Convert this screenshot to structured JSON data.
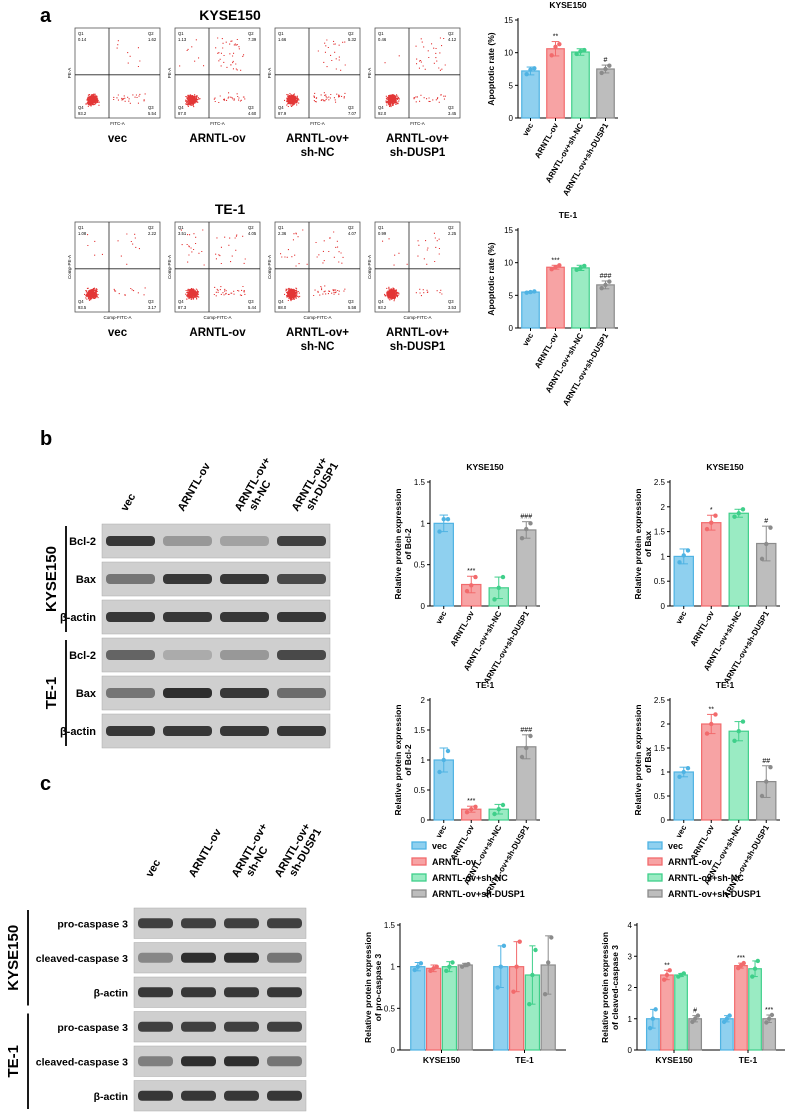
{
  "colors": {
    "vec": "#4fb3e3",
    "arntl": "#f26a6c",
    "shnc": "#3fcf8a",
    "shdusp1": "#8b8b8b",
    "vec_fill": "#8fd0ef",
    "arntl_fill": "#f7a3a4",
    "shnc_fill": "#9aebc3",
    "shdusp1_fill": "#bdbdbd",
    "blot_bg": "#cfcfcf",
    "band": "#1c1c1c"
  },
  "panel_letters": {
    "a": "a",
    "b": "b",
    "c": "c"
  },
  "flow": {
    "groups": [
      "vec",
      "ARNTL-ov",
      "ARNTL-ov+\nsh-NC",
      "ARNTL-ov+\nsh-DUSP1"
    ],
    "rows": [
      {
        "title": "KYSE150",
        "x_axis_label": "FITC-A",
        "y_axis_label": "PE-A",
        "quadrants": [
          {
            "q1": "0.14",
            "q2": "1.62",
            "q3": "5.54",
            "q4": "93.2"
          },
          {
            "q1": "1.13",
            "q2": "7.39",
            "q3": "4.60",
            "q4": "87.0"
          },
          {
            "q1": "1.66",
            "q2": "5.32",
            "q3": "7.07",
            "q4": "87.9"
          },
          {
            "q1": "0.46",
            "q2": "4.12",
            "q3": "3.45",
            "q4": "92.0"
          }
        ]
      },
      {
        "title": "TE-1",
        "x_axis_label": "Comp-FITC-A",
        "y_axis_label": "Comp-PE-A",
        "quadrants": [
          {
            "q1": "1.08",
            "q2": "2.22",
            "q3": "3.17",
            "q4": "93.5"
          },
          {
            "q1": "3.51",
            "q2": "4.05",
            "q3": "5.44",
            "q4": "87.3"
          },
          {
            "q1": "2.36",
            "q2": "4.07",
            "q3": "5.58",
            "q4": "88.0"
          },
          {
            "q1": "0.99",
            "q2": "2.25",
            "q3": "3.53",
            "q4": "93.2"
          }
        ]
      }
    ],
    "quadrant_names": {
      "q1": "Q1",
      "q2": "Q2",
      "q3": "Q3",
      "q4": "Q4"
    }
  },
  "blot_b": {
    "lanes": [
      "vec",
      "ARNTL-ov",
      "ARNTL-ov+\nsh-NC",
      "ARNTL-ov+\nsh-DUSP1"
    ],
    "cell_lines": [
      "KYSE150",
      "TE-1"
    ],
    "rows": [
      {
        "label": "Bcl-2",
        "intensity": [
          0.85,
          0.3,
          0.25,
          0.8
        ]
      },
      {
        "label": "Bax",
        "intensity": [
          0.5,
          0.85,
          0.85,
          0.75
        ]
      },
      {
        "label": "β-actin",
        "intensity": [
          0.85,
          0.85,
          0.85,
          0.85
        ]
      },
      {
        "label": "Bcl-2",
        "intensity": [
          0.6,
          0.2,
          0.3,
          0.75
        ]
      },
      {
        "label": "Bax",
        "intensity": [
          0.5,
          0.9,
          0.85,
          0.55
        ]
      },
      {
        "label": "β-actin",
        "intensity": [
          0.85,
          0.85,
          0.85,
          0.85
        ]
      }
    ]
  },
  "blot_c": {
    "lanes": [
      "vec",
      "ARNTL-ov",
      "ARNTL-ov+\nsh-NC",
      "ARNTL-ov+\nsh-DUSP1"
    ],
    "cell_lines": [
      "KYSE150",
      "TE-1"
    ],
    "rows": [
      {
        "label": "pro-caspase 3",
        "intensity": [
          0.8,
          0.8,
          0.8,
          0.8
        ]
      },
      {
        "label": "cleaved-caspase 3",
        "intensity": [
          0.4,
          0.9,
          0.9,
          0.5
        ]
      },
      {
        "label": "β-actin",
        "intensity": [
          0.85,
          0.85,
          0.85,
          0.85
        ]
      },
      {
        "label": "pro-caspase 3",
        "intensity": [
          0.8,
          0.8,
          0.8,
          0.8
        ]
      },
      {
        "label": "cleaved-caspase 3",
        "intensity": [
          0.45,
          0.9,
          0.9,
          0.5
        ]
      },
      {
        "label": "β-actin",
        "intensity": [
          0.85,
          0.85,
          0.85,
          0.85
        ]
      }
    ]
  },
  "chart_data": [
    {
      "id": "a-kyse150",
      "type": "bar",
      "title": "KYSE150",
      "ylabel": "Apoptotic rate (%)",
      "xlabel": "",
      "categories": [
        "vec",
        "ARNTL-ov",
        "ARNTL-ov+sh-NC",
        "ARNTL-ov+sh-DUSP1"
      ],
      "values": [
        7.2,
        10.6,
        10.1,
        7.5
      ],
      "errors": [
        0.6,
        1.1,
        0.5,
        0.6
      ],
      "points": [
        [
          6.7,
          7.4,
          7.6
        ],
        [
          9.6,
          10.9,
          11.3
        ],
        [
          9.8,
          10.2,
          10.4
        ],
        [
          6.9,
          7.5,
          8.0
        ]
      ],
      "significance": [
        "",
        "**",
        "",
        "#"
      ],
      "ylim": [
        0,
        15
      ],
      "yticks": [
        0,
        5,
        10,
        15
      ]
    },
    {
      "id": "a-te1",
      "type": "bar",
      "title": "TE-1",
      "ylabel": "Apoptotic rate (%)",
      "xlabel": "",
      "categories": [
        "vec",
        "ARNTL-ov",
        "ARNTL-ov+sh-NC",
        "ARNTL-ov+sh-DUSP1"
      ],
      "values": [
        5.5,
        9.3,
        9.2,
        6.6
      ],
      "errors": [
        0.1,
        0.3,
        0.4,
        0.6
      ],
      "points": [
        [
          5.4,
          5.5,
          5.6
        ],
        [
          9.0,
          9.3,
          9.6
        ],
        [
          8.9,
          9.2,
          9.5
        ],
        [
          6.1,
          6.6,
          7.1
        ]
      ],
      "significance": [
        "",
        "***",
        "",
        "###"
      ],
      "ylim": [
        0,
        15
      ],
      "yticks": [
        0,
        5,
        10,
        15
      ]
    },
    {
      "id": "b-kyse150-bcl2",
      "type": "bar",
      "title": "KYSE150",
      "ylabel": "Relative protein expression\nof Bcl-2",
      "xlabel": "",
      "categories": [
        "vec",
        "ARNTL-ov",
        "ARNTL-ov+sh-NC",
        "ARNTL-ov+sh-DUSP1"
      ],
      "values": [
        1.0,
        0.26,
        0.22,
        0.92
      ],
      "errors": [
        0.1,
        0.1,
        0.13,
        0.1
      ],
      "points": [
        [
          0.9,
          1.05,
          1.05
        ],
        [
          0.18,
          0.25,
          0.35
        ],
        [
          0.08,
          0.22,
          0.35
        ],
        [
          0.82,
          0.93,
          1.0
        ]
      ],
      "significance": [
        "",
        "***",
        "",
        "###"
      ],
      "ylim": [
        0,
        1.5
      ],
      "yticks": [
        0,
        0.5,
        1.0,
        1.5
      ]
    },
    {
      "id": "b-kyse150-bax",
      "type": "bar",
      "title": "KYSE150",
      "ylabel": "Relative protein expression\nof Bax",
      "xlabel": "",
      "categories": [
        "vec",
        "ARNTL-ov",
        "ARNTL-ov+sh-NC",
        "ARNTL-ov+sh-DUSP1"
      ],
      "values": [
        1.0,
        1.68,
        1.87,
        1.26
      ],
      "errors": [
        0.15,
        0.15,
        0.08,
        0.35
      ],
      "points": [
        [
          0.88,
          1.02,
          1.12
        ],
        [
          1.55,
          1.68,
          1.82
        ],
        [
          1.8,
          1.87,
          1.95
        ],
        [
          0.95,
          1.25,
          1.58
        ]
      ],
      "significance": [
        "",
        "*",
        "",
        "#"
      ],
      "ylim": [
        0,
        2.5
      ],
      "yticks": [
        0,
        0.5,
        1.0,
        1.5,
        2.0,
        2.5
      ]
    },
    {
      "id": "b-te1-bcl2",
      "type": "bar",
      "title": "TE-1",
      "ylabel": "Relative protein expression\nof Bcl-2",
      "xlabel": "",
      "categories": [
        "vec",
        "ARNTL-ov",
        "ARNTL-ov+sh-NC",
        "ARNTL-ov+sh-DUSP1"
      ],
      "values": [
        1.0,
        0.18,
        0.18,
        1.22
      ],
      "errors": [
        0.2,
        0.05,
        0.08,
        0.2
      ],
      "points": [
        [
          0.8,
          1.0,
          1.15
        ],
        [
          0.13,
          0.18,
          0.22
        ],
        [
          0.1,
          0.18,
          0.25
        ],
        [
          1.05,
          1.2,
          1.4
        ]
      ],
      "significance": [
        "",
        "***",
        "",
        "###"
      ],
      "ylim": [
        0,
        2.0
      ],
      "yticks": [
        0,
        0.5,
        1.0,
        1.5,
        2.0
      ]
    },
    {
      "id": "b-te1-bax",
      "type": "bar",
      "title": "TE-1",
      "ylabel": "Relative protein expression\nof Bax",
      "xlabel": "",
      "categories": [
        "vec",
        "ARNTL-ov",
        "ARNTL-ov+sh-NC",
        "ARNTL-ov+sh-DUSP1"
      ],
      "values": [
        1.0,
        2.0,
        1.85,
        0.8
      ],
      "errors": [
        0.1,
        0.2,
        0.2,
        0.33
      ],
      "points": [
        [
          0.9,
          1.0,
          1.08
        ],
        [
          1.8,
          2.0,
          2.2
        ],
        [
          1.65,
          1.85,
          2.05
        ],
        [
          0.5,
          0.8,
          1.1
        ]
      ],
      "significance": [
        "",
        "**",
        "",
        "##"
      ],
      "ylim": [
        0,
        2.5
      ],
      "yticks": [
        0,
        0.5,
        1.0,
        1.5,
        2.0,
        2.5
      ]
    },
    {
      "id": "c-pro",
      "type": "bar",
      "title": "",
      "ylabel": "Relative protein expression\nof pro-caspase 3",
      "xlabel": "",
      "categories": [
        "KYSE150",
        "TE-1"
      ],
      "series": [
        {
          "name": "vec",
          "values": [
            1.0,
            1.0
          ],
          "errors": [
            0.05,
            0.25
          ],
          "points": [
            [
              0.96,
              1.0,
              1.04
            ],
            [
              0.75,
              1.0,
              1.25
            ]
          ]
        },
        {
          "name": "ARNTL-ov",
          "values": [
            0.98,
            1.0
          ],
          "errors": [
            0.04,
            0.3
          ],
          "points": [
            [
              0.95,
              0.98,
              1.0
            ],
            [
              0.7,
              1.0,
              1.3
            ]
          ]
        },
        {
          "name": "ARNTL-ov+sh-NC",
          "values": [
            1.0,
            0.9
          ],
          "errors": [
            0.06,
            0.35
          ],
          "points": [
            [
              0.95,
              1.0,
              1.05
            ],
            [
              0.55,
              0.9,
              1.2
            ]
          ]
        },
        {
          "name": "ARNTL-ov+sh-DUSP1",
          "values": [
            1.02,
            1.02
          ],
          "errors": [
            0.02,
            0.35
          ],
          "points": [
            [
              1.0,
              1.02,
              1.03
            ],
            [
              0.67,
              1.05,
              1.35
            ]
          ]
        }
      ],
      "significance": [
        [
          "",
          "",
          "",
          ""
        ],
        [
          "",
          "",
          "",
          ""
        ]
      ],
      "ylim": [
        0,
        1.5
      ],
      "yticks": [
        0,
        0.5,
        1.0,
        1.5
      ],
      "legend": "top-left"
    },
    {
      "id": "c-cleaved",
      "type": "bar",
      "title": "",
      "ylabel": "Relative protein expression\nof cleaved-caspase 3",
      "xlabel": "",
      "categories": [
        "KYSE150",
        "TE-1"
      ],
      "series": [
        {
          "name": "vec",
          "values": [
            1.0,
            1.0
          ],
          "errors": [
            0.3,
            0.1
          ],
          "points": [
            [
              0.7,
              1.0,
              1.3
            ],
            [
              0.9,
              1.0,
              1.1
            ]
          ]
        },
        {
          "name": "ARNTL-ov",
          "values": [
            2.4,
            2.7
          ],
          "errors": [
            0.15,
            0.08
          ],
          "points": [
            [
              2.25,
              2.4,
              2.55
            ],
            [
              2.62,
              2.7,
              2.78
            ]
          ]
        },
        {
          "name": "ARNTL-ov+sh-NC",
          "values": [
            2.4,
            2.6
          ],
          "errors": [
            0.05,
            0.25
          ],
          "points": [
            [
              2.35,
              2.4,
              2.45
            ],
            [
              2.35,
              2.6,
              2.85
            ]
          ]
        },
        {
          "name": "ARNTL-ov+sh-DUSP1",
          "values": [
            1.0,
            1.0
          ],
          "errors": [
            0.1,
            0.12
          ],
          "points": [
            [
              0.9,
              1.0,
              1.1
            ],
            [
              0.88,
              1.0,
              1.12
            ]
          ]
        }
      ],
      "significance": [
        [
          "",
          "**",
          "",
          "#"
        ],
        [
          "",
          "***",
          "",
          "***"
        ]
      ],
      "ylim": [
        0,
        4
      ],
      "yticks": [
        0,
        1,
        2,
        3,
        4
      ],
      "legend": "top-left"
    }
  ]
}
